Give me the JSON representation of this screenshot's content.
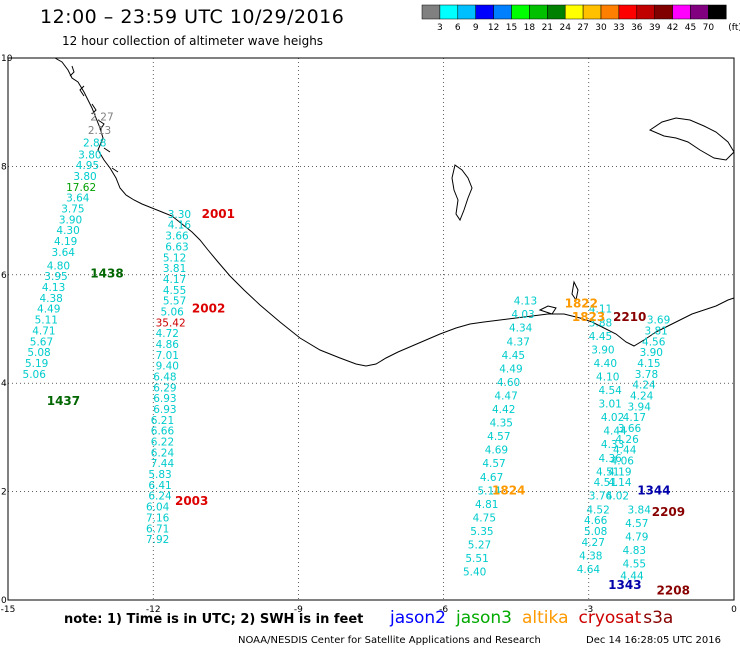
{
  "header": {
    "title": "12:00 – 23:59 UTC 10/29/2016",
    "subtitle": "12 hour collection of altimeter wave heighs"
  },
  "colorbar": {
    "unit": "(ft)",
    "colors": [
      "#808080",
      "#00ffff",
      "#00bfff",
      "#0000ff",
      "#0080ff",
      "#00ff00",
      "#00c000",
      "#008000",
      "#ffff00",
      "#ffc000",
      "#ff8000",
      "#ff0000",
      "#c00000",
      "#800000",
      "#ff00ff",
      "#800080",
      "#000000"
    ],
    "ticks": [
      "3",
      "6",
      "9",
      "12",
      "15",
      "18",
      "21",
      "24",
      "27",
      "30",
      "33",
      "36",
      "39",
      "42",
      "45",
      "70"
    ]
  },
  "axes": {
    "x_ticks": [
      "-15",
      "-12",
      "-9",
      "-6",
      "-3",
      "0"
    ],
    "y_ticks": [
      "0",
      "2",
      "4",
      "6",
      "8",
      "10"
    ]
  },
  "swh_labels": [
    {
      "lon": -13.3,
      "lat": 8.85,
      "text": "2.27",
      "color": "#808080"
    },
    {
      "lon": -13.35,
      "lat": 8.6,
      "text": "2.13",
      "color": "#808080"
    },
    {
      "lon": -13.45,
      "lat": 8.37,
      "text": "2.88",
      "color": "#00cccc"
    },
    {
      "lon": -13.55,
      "lat": 8.15,
      "text": "3.80",
      "color": "#00cccc"
    },
    {
      "lon": -13.6,
      "lat": 7.95,
      "text": "4.95",
      "color": "#00cccc"
    },
    {
      "lon": -13.65,
      "lat": 7.75,
      "text": "3.80",
      "color": "#00cccc"
    },
    {
      "lon": -13.8,
      "lat": 7.55,
      "text": "17.62",
      "color": "#00a000"
    },
    {
      "lon": -13.8,
      "lat": 7.35,
      "text": "3.64",
      "color": "#00cccc"
    },
    {
      "lon": -13.9,
      "lat": 7.15,
      "text": "3.75",
      "color": "#00cccc"
    },
    {
      "lon": -13.95,
      "lat": 6.95,
      "text": "3.90",
      "color": "#00cccc"
    },
    {
      "lon": -14.0,
      "lat": 6.75,
      "text": "4.30",
      "color": "#00cccc"
    },
    {
      "lon": -14.05,
      "lat": 6.55,
      "text": "4.19",
      "color": "#00cccc"
    },
    {
      "lon": -14.1,
      "lat": 6.35,
      "text": "3.64",
      "color": "#00cccc"
    },
    {
      "lon": -14.2,
      "lat": 6.1,
      "text": "4.80",
      "color": "#00cccc"
    },
    {
      "lon": -14.25,
      "lat": 5.9,
      "text": "3.95",
      "color": "#00cccc"
    },
    {
      "lon": -14.3,
      "lat": 5.7,
      "text": "4.13",
      "color": "#00cccc"
    },
    {
      "lon": -14.35,
      "lat": 5.5,
      "text": "4.38",
      "color": "#00cccc"
    },
    {
      "lon": -14.4,
      "lat": 5.3,
      "text": "4.49",
      "color": "#00cccc"
    },
    {
      "lon": -14.45,
      "lat": 5.1,
      "text": "5.11",
      "color": "#00cccc"
    },
    {
      "lon": -14.5,
      "lat": 4.9,
      "text": "4.71",
      "color": "#00cccc"
    },
    {
      "lon": -14.55,
      "lat": 4.7,
      "text": "5.67",
      "color": "#00cccc"
    },
    {
      "lon": -14.6,
      "lat": 4.5,
      "text": "5.08",
      "color": "#00cccc"
    },
    {
      "lon": -14.65,
      "lat": 4.3,
      "text": "5.19",
      "color": "#00cccc"
    },
    {
      "lon": -14.7,
      "lat": 4.1,
      "text": "5.06",
      "color": "#00cccc"
    },
    {
      "lon": -11.7,
      "lat": 7.05,
      "text": "3.30",
      "color": "#00cccc"
    },
    {
      "lon": -11.7,
      "lat": 6.85,
      "text": "4.16",
      "color": "#00cccc"
    },
    {
      "lon": -11.75,
      "lat": 6.65,
      "text": "3.66",
      "color": "#00cccc"
    },
    {
      "lon": -11.75,
      "lat": 6.45,
      "text": "6.63",
      "color": "#00cccc"
    },
    {
      "lon": -11.8,
      "lat": 6.25,
      "text": "5.12",
      "color": "#00cccc"
    },
    {
      "lon": -11.8,
      "lat": 6.05,
      "text": "3.81",
      "color": "#00cccc"
    },
    {
      "lon": -11.8,
      "lat": 5.85,
      "text": "4.17",
      "color": "#00cccc"
    },
    {
      "lon": -11.8,
      "lat": 5.65,
      "text": "4.55",
      "color": "#00cccc"
    },
    {
      "lon": -11.8,
      "lat": 5.45,
      "text": "5.57",
      "color": "#00cccc"
    },
    {
      "lon": -11.85,
      "lat": 5.25,
      "text": "5.06",
      "color": "#00cccc"
    },
    {
      "lon": -11.95,
      "lat": 5.05,
      "text": "35.42",
      "color": "#cc0000"
    },
    {
      "lon": -11.95,
      "lat": 4.85,
      "text": "4.72",
      "color": "#00cccc"
    },
    {
      "lon": -11.95,
      "lat": 4.65,
      "text": "4.86",
      "color": "#00cccc"
    },
    {
      "lon": -11.95,
      "lat": 4.45,
      "text": "7.01",
      "color": "#00cccc"
    },
    {
      "lon": -11.95,
      "lat": 4.25,
      "text": "9.40",
      "color": "#00cccc"
    },
    {
      "lon": -12.0,
      "lat": 4.05,
      "text": "6.48",
      "color": "#00cccc"
    },
    {
      "lon": -12.0,
      "lat": 3.85,
      "text": "6.29",
      "color": "#00cccc"
    },
    {
      "lon": -12.0,
      "lat": 3.65,
      "text": "6.93",
      "color": "#00cccc"
    },
    {
      "lon": -12.0,
      "lat": 3.45,
      "text": "6.93",
      "color": "#00cccc"
    },
    {
      "lon": -12.05,
      "lat": 3.25,
      "text": "6.21",
      "color": "#00cccc"
    },
    {
      "lon": -12.05,
      "lat": 3.05,
      "text": "6.66",
      "color": "#00cccc"
    },
    {
      "lon": -12.05,
      "lat": 2.85,
      "text": "6.22",
      "color": "#00cccc"
    },
    {
      "lon": -12.05,
      "lat": 2.65,
      "text": "6.24",
      "color": "#00cccc"
    },
    {
      "lon": -12.05,
      "lat": 2.45,
      "text": "7.44",
      "color": "#00cccc"
    },
    {
      "lon": -12.1,
      "lat": 2.25,
      "text": "5.83",
      "color": "#00cccc"
    },
    {
      "lon": -12.1,
      "lat": 2.05,
      "text": "6.41",
      "color": "#00cccc"
    },
    {
      "lon": -12.1,
      "lat": 1.85,
      "text": "6.24",
      "color": "#00cccc"
    },
    {
      "lon": -12.15,
      "lat": 1.65,
      "text": "6.04",
      "color": "#00cccc"
    },
    {
      "lon": -12.15,
      "lat": 1.45,
      "text": "7.16",
      "color": "#00cccc"
    },
    {
      "lon": -12.15,
      "lat": 1.25,
      "text": "6.71",
      "color": "#00cccc"
    },
    {
      "lon": -12.15,
      "lat": 1.05,
      "text": "7.92",
      "color": "#00cccc"
    },
    {
      "lon": -4.55,
      "lat": 5.45,
      "text": "4.13",
      "color": "#00cccc"
    },
    {
      "lon": -4.6,
      "lat": 5.2,
      "text": "4.03",
      "color": "#00cccc"
    },
    {
      "lon": -4.65,
      "lat": 4.95,
      "text": "4.34",
      "color": "#00cccc"
    },
    {
      "lon": -4.7,
      "lat": 4.7,
      "text": "4.37",
      "color": "#00cccc"
    },
    {
      "lon": -4.8,
      "lat": 4.45,
      "text": "4.45",
      "color": "#00cccc"
    },
    {
      "lon": -4.85,
      "lat": 4.2,
      "text": "4.49",
      "color": "#00cccc"
    },
    {
      "lon": -4.9,
      "lat": 3.95,
      "text": "4.60",
      "color": "#00cccc"
    },
    {
      "lon": -4.95,
      "lat": 3.7,
      "text": "4.47",
      "color": "#00cccc"
    },
    {
      "lon": -5.0,
      "lat": 3.45,
      "text": "4.42",
      "color": "#00cccc"
    },
    {
      "lon": -5.05,
      "lat": 3.2,
      "text": "4.35",
      "color": "#00cccc"
    },
    {
      "lon": -5.1,
      "lat": 2.95,
      "text": "4.57",
      "color": "#00cccc"
    },
    {
      "lon": -5.15,
      "lat": 2.7,
      "text": "4.69",
      "color": "#00cccc"
    },
    {
      "lon": -5.2,
      "lat": 2.45,
      "text": "4.57",
      "color": "#00cccc"
    },
    {
      "lon": -5.25,
      "lat": 2.2,
      "text": "4.67",
      "color": "#00cccc"
    },
    {
      "lon": -5.3,
      "lat": 1.95,
      "text": "5.14",
      "color": "#00cccc"
    },
    {
      "lon": -5.35,
      "lat": 1.7,
      "text": "4.81",
      "color": "#00cccc"
    },
    {
      "lon": -5.4,
      "lat": 1.45,
      "text": "4.75",
      "color": "#00cccc"
    },
    {
      "lon": -5.45,
      "lat": 1.2,
      "text": "5.35",
      "color": "#00cccc"
    },
    {
      "lon": -5.5,
      "lat": 0.95,
      "text": "5.27",
      "color": "#00cccc"
    },
    {
      "lon": -5.55,
      "lat": 0.7,
      "text": "5.51",
      "color": "#00cccc"
    },
    {
      "lon": -5.6,
      "lat": 0.45,
      "text": "5.40",
      "color": "#00cccc"
    },
    {
      "lon": -3.0,
      "lat": 5.3,
      "text": "4.11",
      "color": "#00cccc"
    },
    {
      "lon": -3.0,
      "lat": 5.05,
      "text": "3.88",
      "color": "#00cccc"
    },
    {
      "lon": -3.0,
      "lat": 4.8,
      "text": "4.45",
      "color": "#00cccc"
    },
    {
      "lon": -2.95,
      "lat": 4.55,
      "text": "3.90",
      "color": "#00cccc"
    },
    {
      "lon": -2.9,
      "lat": 4.3,
      "text": "4.40",
      "color": "#00cccc"
    },
    {
      "lon": -2.85,
      "lat": 4.05,
      "text": "4.10",
      "color": "#00cccc"
    },
    {
      "lon": -2.8,
      "lat": 3.8,
      "text": "4.54",
      "color": "#00cccc"
    },
    {
      "lon": -2.8,
      "lat": 3.55,
      "text": "3.01",
      "color": "#00cccc"
    },
    {
      "lon": -2.75,
      "lat": 3.3,
      "text": "4.02",
      "color": "#00cccc"
    },
    {
      "lon": -2.7,
      "lat": 3.05,
      "text": "4.44",
      "color": "#00cccc"
    },
    {
      "lon": -2.75,
      "lat": 2.8,
      "text": "4.33",
      "color": "#00cccc"
    },
    {
      "lon": -2.8,
      "lat": 2.55,
      "text": "4.36",
      "color": "#00cccc"
    },
    {
      "lon": -2.85,
      "lat": 2.3,
      "text": "4.51",
      "color": "#00cccc"
    },
    {
      "lon": -2.9,
      "lat": 2.1,
      "text": "4.51",
      "color": "#00cccc"
    },
    {
      "lon": -3.0,
      "lat": 1.85,
      "text": "3.76",
      "color": "#00cccc"
    },
    {
      "lon": -3.05,
      "lat": 1.6,
      "text": "4.52",
      "color": "#00cccc"
    },
    {
      "lon": -3.1,
      "lat": 1.4,
      "text": "4.66",
      "color": "#00cccc"
    },
    {
      "lon": -3.1,
      "lat": 1.2,
      "text": "5.08",
      "color": "#00cccc"
    },
    {
      "lon": -3.15,
      "lat": 1.0,
      "text": "4.27",
      "color": "#00cccc"
    },
    {
      "lon": -3.2,
      "lat": 0.75,
      "text": "4.38",
      "color": "#00cccc"
    },
    {
      "lon": -3.25,
      "lat": 0.5,
      "text": "4.64",
      "color": "#00cccc"
    },
    {
      "lon": -1.8,
      "lat": 5.1,
      "text": "3.69",
      "color": "#00cccc"
    },
    {
      "lon": -1.85,
      "lat": 4.9,
      "text": "3.81",
      "color": "#00cccc"
    },
    {
      "lon": -1.9,
      "lat": 4.7,
      "text": "4.56",
      "color": "#00cccc"
    },
    {
      "lon": -1.95,
      "lat": 4.5,
      "text": "3.90",
      "color": "#00cccc"
    },
    {
      "lon": -2.0,
      "lat": 4.3,
      "text": "4.15",
      "color": "#00cccc"
    },
    {
      "lon": -2.05,
      "lat": 4.1,
      "text": "3.78",
      "color": "#00cccc"
    },
    {
      "lon": -2.1,
      "lat": 3.9,
      "text": "4.24",
      "color": "#00cccc"
    },
    {
      "lon": -2.15,
      "lat": 3.7,
      "text": "4.24",
      "color": "#00cccc"
    },
    {
      "lon": -2.2,
      "lat": 3.5,
      "text": "3.94",
      "color": "#00cccc"
    },
    {
      "lon": -2.3,
      "lat": 3.3,
      "text": "4.17",
      "color": "#00cccc"
    },
    {
      "lon": -2.4,
      "lat": 3.1,
      "text": "3.66",
      "color": "#00cccc"
    },
    {
      "lon": -2.45,
      "lat": 2.9,
      "text": "4.26",
      "color": "#00cccc"
    },
    {
      "lon": -2.5,
      "lat": 2.7,
      "text": "4.44",
      "color": "#00cccc"
    },
    {
      "lon": -2.55,
      "lat": 2.5,
      "text": "4.06",
      "color": "#00cccc"
    },
    {
      "lon": -2.6,
      "lat": 2.3,
      "text": "4.19",
      "color": "#00cccc"
    },
    {
      "lon": -2.6,
      "lat": 2.1,
      "text": "4.14",
      "color": "#00cccc"
    },
    {
      "lon": -2.65,
      "lat": 1.85,
      "text": "4.02",
      "color": "#00cccc"
    },
    {
      "lon": -2.2,
      "lat": 1.6,
      "text": "3.84",
      "color": "#00cccc"
    },
    {
      "lon": -2.25,
      "lat": 1.35,
      "text": "4.57",
      "color": "#00cccc"
    },
    {
      "lon": -2.25,
      "lat": 1.1,
      "text": "4.79",
      "color": "#00cccc"
    },
    {
      "lon": -2.3,
      "lat": 0.85,
      "text": "4.83",
      "color": "#00cccc"
    },
    {
      "lon": -2.3,
      "lat": 0.6,
      "text": "4.55",
      "color": "#00cccc"
    },
    {
      "lon": -2.35,
      "lat": 0.38,
      "text": "4.44",
      "color": "#00cccc"
    }
  ],
  "time_labels": [
    {
      "lon": -11.0,
      "lat": 7.05,
      "text": "2001",
      "color": "#dd0000"
    },
    {
      "lon": -11.2,
      "lat": 5.3,
      "text": "2002",
      "color": "#dd0000"
    },
    {
      "lon": -11.55,
      "lat": 1.75,
      "text": "2003",
      "color": "#dd0000"
    },
    {
      "lon": -13.3,
      "lat": 5.95,
      "text": "1438",
      "color": "#006600"
    },
    {
      "lon": -14.2,
      "lat": 3.6,
      "text": "1437",
      "color": "#006600"
    },
    {
      "lon": -3.35,
      "lat": 5.15,
      "text": "1823",
      "color": "#ff9900"
    },
    {
      "lon": -3.5,
      "lat": 5.4,
      "text": "1822",
      "color": "#ff9900"
    },
    {
      "lon": -5.0,
      "lat": 1.95,
      "text": "1824",
      "color": "#ff9900"
    },
    {
      "lon": -2.5,
      "lat": 5.15,
      "text": "2210",
      "color": "#880000"
    },
    {
      "lon": -1.7,
      "lat": 1.55,
      "text": "2209",
      "color": "#880000"
    },
    {
      "lon": -1.6,
      "lat": 0.1,
      "text": "2208",
      "color": "#880000"
    },
    {
      "lon": -2.0,
      "lat": 1.95,
      "text": "1344",
      "color": "#0000aa"
    },
    {
      "lon": -2.6,
      "lat": 0.2,
      "text": "1343",
      "color": "#0000aa"
    }
  ],
  "note": "note: 1) Time is in UTC; 2) SWH is in feet",
  "legend": [
    {
      "name": "jason2",
      "color": "#0000ff"
    },
    {
      "name": "jason3",
      "color": "#00aa00"
    },
    {
      "name": "altika",
      "color": "#ff9900"
    },
    {
      "name": "cryosat",
      "color": "#cc0000"
    },
    {
      "name": "s3a",
      "color": "#880000"
    }
  ],
  "footer": {
    "credit": "NOAA/NESDIS Center for Satellite Applications and Research",
    "date": "Dec 14 16:28:05 UTC 2016"
  }
}
